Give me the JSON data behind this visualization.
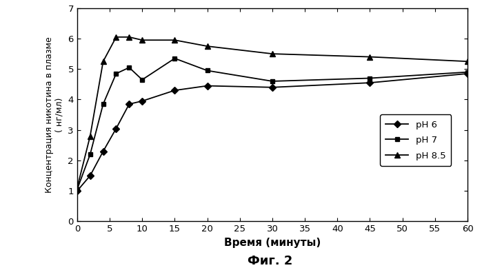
{
  "ph6_x": [
    0,
    2,
    4,
    6,
    8,
    10,
    15,
    20,
    30,
    45,
    60
  ],
  "ph6_y": [
    1.0,
    1.5,
    2.3,
    3.05,
    3.85,
    3.95,
    4.3,
    4.45,
    4.4,
    4.55,
    4.85
  ],
  "ph7_x": [
    0,
    2,
    4,
    6,
    8,
    10,
    15,
    20,
    30,
    45,
    60
  ],
  "ph7_y": [
    1.05,
    2.2,
    3.85,
    4.85,
    5.05,
    4.65,
    5.35,
    4.95,
    4.6,
    4.7,
    4.9
  ],
  "ph85_x": [
    0,
    2,
    4,
    6,
    8,
    10,
    15,
    20,
    30,
    45,
    60
  ],
  "ph85_y": [
    1.1,
    2.8,
    5.25,
    6.05,
    6.05,
    5.95,
    5.95,
    5.75,
    5.5,
    5.4,
    5.25
  ],
  "line_color": "#000000",
  "xlabel": "Время (минуты)",
  "ylabel_line1": "Концентрация никотина в плазме",
  "ylabel_line2": "( нг/мл)",
  "caption": "Фиг. 2",
  "legend_labels": [
    "pH 6",
    "pH 7",
    "pH 8.5"
  ],
  "xlim": [
    0,
    60
  ],
  "ylim": [
    0,
    7
  ],
  "xticks": [
    0,
    5,
    10,
    15,
    20,
    25,
    30,
    35,
    40,
    45,
    50,
    55,
    60
  ],
  "yticks": [
    0,
    1,
    2,
    3,
    4,
    5,
    6,
    7
  ],
  "background_color": "#ffffff"
}
